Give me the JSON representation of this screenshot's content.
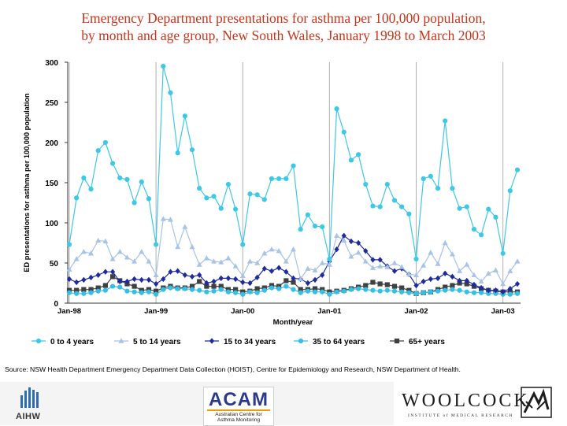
{
  "header": {
    "title_line1": "Emergency Department presentations for asthma per 100,000 population,",
    "title_line2": "by month and age group, New South Wales, January 1998 to March 2003"
  },
  "colors": {
    "title": "#c8341a",
    "series": [
      "#3cc8e6",
      "#a7c3e6",
      "#1f2aa0",
      "#33bfe6",
      "#404040"
    ]
  },
  "footer": {
    "source": "Source: NSW Health Department Emergency Department Data Collection (HOIST), Centre for Epidemiology and Research, NSW Department of Health.",
    "aihw_label": "AIHW",
    "acam_title": "ACAM",
    "acam_sub1": "Australian Centre for",
    "acam_sub2": "Asthma Monitoring",
    "woolcock_name": "WOOLCOCK",
    "woolcock_sub": "INSTITUTE of MEDICAL RESEARCH"
  },
  "chart_data": {
    "type": "line",
    "title": "Emergency Department presentations for asthma per 100,000 population, by month and age group, New South Wales, January 1998 to March 2003",
    "xlabel": "Month/year",
    "ylabel": "ED presentations for asthma per 100,000 population",
    "ylim": [
      0,
      300
    ],
    "yticks": [
      0,
      50,
      100,
      150,
      200,
      250,
      300
    ],
    "x_tick_labels": [
      "Jan-98",
      "Jan-99",
      "Jan-00",
      "Jan-01",
      "Jan-02",
      "Jan-03"
    ],
    "x_tick_index": [
      0,
      12,
      24,
      36,
      48,
      60
    ],
    "gridlines": "vertical at each January",
    "legend_position": "bottom",
    "series": [
      {
        "name": "0 to 4 years",
        "marker": "circle",
        "values": [
          73,
          131,
          156,
          142,
          190,
          200,
          174,
          156,
          154,
          125,
          151,
          130,
          73,
          295,
          262,
          187,
          233,
          191,
          143,
          131,
          133,
          118,
          148,
          117,
          73,
          136,
          135,
          129,
          155,
          155,
          155,
          171,
          92,
          110,
          96,
          95,
          55,
          242,
          213,
          178,
          185,
          148,
          121,
          120,
          148,
          128,
          120,
          111,
          55,
          155,
          158,
          143,
          227,
          143,
          118,
          120,
          92,
          85,
          117,
          107,
          62,
          140,
          166
        ]
      },
      {
        "name": "5 to 14 years",
        "marker": "triangle",
        "values": [
          42,
          55,
          64,
          62,
          78,
          77,
          55,
          64,
          57,
          52,
          64,
          52,
          35,
          105,
          104,
          70,
          95,
          70,
          48,
          56,
          52,
          51,
          56,
          46,
          34,
          52,
          50,
          62,
          67,
          65,
          52,
          67,
          30,
          43,
          41,
          50,
          48,
          84,
          78,
          58,
          63,
          52,
          44,
          46,
          45,
          50,
          45,
          36,
          35,
          47,
          63,
          49,
          75,
          61,
          40,
          48,
          35,
          27,
          37,
          41,
          24,
          40,
          52
        ]
      },
      {
        "name": "15 to 34 years",
        "marker": "diamond",
        "values": [
          30,
          26,
          29,
          32,
          35,
          39,
          39,
          27,
          27,
          30,
          29,
          29,
          24,
          30,
          39,
          40,
          35,
          33,
          35,
          25,
          27,
          31,
          31,
          30,
          26,
          25,
          32,
          43,
          40,
          44,
          39,
          31,
          30,
          25,
          29,
          35,
          52,
          67,
          84,
          77,
          75,
          65,
          54,
          54,
          46,
          40,
          43,
          36,
          22,
          27,
          30,
          31,
          37,
          33,
          28,
          28,
          23,
          19,
          16,
          16,
          14,
          18,
          24
        ]
      },
      {
        "name": "35 to 64 years",
        "marker": "circle",
        "values": [
          13,
          12,
          12,
          13,
          15,
          16,
          21,
          20,
          15,
          14,
          13,
          14,
          11,
          17,
          19,
          18,
          18,
          17,
          16,
          14,
          15,
          17,
          14,
          13,
          11,
          14,
          13,
          16,
          19,
          18,
          21,
          17,
          13,
          15,
          14,
          14,
          11,
          14,
          15,
          17,
          18,
          17,
          16,
          15,
          16,
          15,
          14,
          13,
          12,
          13,
          14,
          15,
          16,
          17,
          16,
          14,
          13,
          13,
          12,
          12,
          11,
          11,
          12
        ]
      },
      {
        "name": "65+ years",
        "marker": "square",
        "values": [
          16,
          16,
          17,
          17,
          19,
          22,
          33,
          28,
          24,
          21,
          16,
          17,
          15,
          19,
          21,
          19,
          19,
          21,
          27,
          21,
          21,
          21,
          17,
          17,
          14,
          15,
          18,
          19,
          22,
          21,
          28,
          26,
          17,
          17,
          18,
          17,
          14,
          15,
          16,
          18,
          20,
          22,
          26,
          24,
          23,
          21,
          19,
          16,
          12,
          13,
          14,
          17,
          20,
          22,
          25,
          24,
          21,
          18,
          16,
          15,
          14,
          14,
          14
        ]
      }
    ]
  }
}
